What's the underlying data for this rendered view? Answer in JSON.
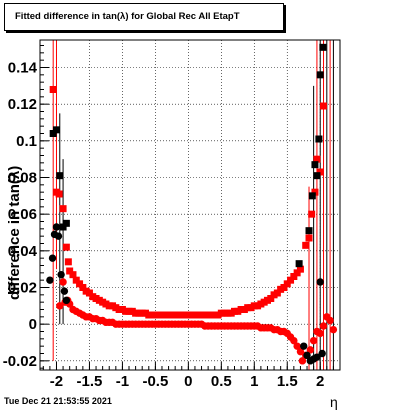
{
  "header": {
    "title": "Fitted difference in tan(λ) for Global Rec All EtapT"
  },
  "footer": {
    "timestamp": "Tue Dec 21 21:53:55 2021"
  },
  "chart_data": {
    "type": "scatter",
    "title": "Fitted difference in tan(λ) for Global Rec All EtapT",
    "xlabel": "η",
    "ylabel": "difference in tan(λ)",
    "xlim": [
      -2.25,
      2.3
    ],
    "ylim": [
      -0.025,
      0.155
    ],
    "xticks": [
      -2,
      -1.5,
      -1,
      -0.5,
      0,
      0.5,
      1,
      1.5,
      2
    ],
    "xtick_labels": [
      "-2",
      "-1.5",
      "-1",
      "-0.5",
      "0",
      "0.5",
      "1",
      "1.5",
      "2"
    ],
    "yticks": [
      -0.02,
      0,
      0.02,
      0.04,
      0.06,
      0.08,
      0.1,
      0.12,
      0.14
    ],
    "ytick_labels": [
      "-0.02",
      "0",
      "0.02",
      "0.04",
      "0.06",
      "0.08",
      "0.1",
      "0.12",
      "0.14"
    ],
    "grid": true,
    "colors": {
      "black": "#000000",
      "red": "#ff0000"
    },
    "series": [
      {
        "marker": "square",
        "color": "#000000",
        "points": [
          [
            -2.05,
            0.104
          ],
          [
            -2.0,
            0.106
          ],
          [
            -1.95,
            0.081
          ],
          [
            -1.9,
            0.053
          ],
          [
            -1.85,
            0.055
          ],
          [
            1.68,
            0.033
          ],
          [
            1.83,
            0.051
          ],
          [
            1.88,
            0.07
          ],
          [
            1.92,
            0.087
          ],
          [
            1.95,
            0.081
          ],
          [
            1.98,
            0.101
          ],
          [
            2.0,
            0.136
          ],
          [
            2.04,
            0.151
          ]
        ]
      },
      {
        "marker": "circle",
        "color": "#000000",
        "points": [
          [
            -2.1,
            0.024
          ],
          [
            -2.06,
            0.036
          ],
          [
            -2.03,
            0.049
          ],
          [
            -2.0,
            0.053
          ],
          [
            -1.97,
            0.048
          ],
          [
            -1.93,
            0.027
          ],
          [
            -1.88,
            0.018
          ],
          [
            -1.85,
            0.013
          ],
          [
            1.75,
            -0.012
          ],
          [
            1.8,
            -0.017
          ],
          [
            1.85,
            -0.02
          ],
          [
            1.9,
            -0.019
          ],
          [
            1.95,
            -0.018
          ],
          [
            2.0,
            0.023
          ],
          [
            2.03,
            -0.016
          ]
        ]
      },
      {
        "marker": "square",
        "color": "#ff0000",
        "points": [
          [
            -2.05,
            0.128
          ],
          [
            -2.0,
            0.072
          ],
          [
            -1.96,
            0.071
          ],
          [
            -1.9,
            0.063
          ],
          [
            -1.85,
            0.042
          ],
          [
            -1.82,
            0.034
          ],
          [
            -1.8,
            0.029
          ],
          [
            -1.75,
            0.027
          ],
          [
            -1.7,
            0.024
          ],
          [
            -1.65,
            0.022
          ],
          [
            -1.6,
            0.02
          ],
          [
            -1.55,
            0.018
          ],
          [
            -1.5,
            0.017
          ],
          [
            -1.45,
            0.015
          ],
          [
            -1.4,
            0.014
          ],
          [
            -1.35,
            0.013
          ],
          [
            -1.3,
            0.012
          ],
          [
            -1.25,
            0.011
          ],
          [
            -1.2,
            0.01
          ],
          [
            -1.15,
            0.01
          ],
          [
            -1.1,
            0.009
          ],
          [
            -1.05,
            0.008
          ],
          [
            -1.0,
            0.008
          ],
          [
            -0.95,
            0.007
          ],
          [
            -0.9,
            0.007
          ],
          [
            -0.85,
            0.007
          ],
          [
            -0.8,
            0.006
          ],
          [
            -0.75,
            0.006
          ],
          [
            -0.7,
            0.006
          ],
          [
            -0.65,
            0.006
          ],
          [
            -0.6,
            0.005
          ],
          [
            -0.55,
            0.005
          ],
          [
            -0.5,
            0.005
          ],
          [
            -0.45,
            0.005
          ],
          [
            -0.4,
            0.005
          ],
          [
            -0.35,
            0.005
          ],
          [
            -0.3,
            0.005
          ],
          [
            -0.25,
            0.005
          ],
          [
            -0.2,
            0.005
          ],
          [
            -0.15,
            0.005
          ],
          [
            -0.1,
            0.005
          ],
          [
            -0.05,
            0.005
          ],
          [
            0.0,
            0.005
          ],
          [
            0.05,
            0.005
          ],
          [
            0.1,
            0.005
          ],
          [
            0.15,
            0.005
          ],
          [
            0.2,
            0.005
          ],
          [
            0.25,
            0.005
          ],
          [
            0.3,
            0.005
          ],
          [
            0.35,
            0.005
          ],
          [
            0.4,
            0.005
          ],
          [
            0.45,
            0.005
          ],
          [
            0.5,
            0.006
          ],
          [
            0.55,
            0.006
          ],
          [
            0.6,
            0.006
          ],
          [
            0.65,
            0.006
          ],
          [
            0.7,
            0.007
          ],
          [
            0.75,
            0.007
          ],
          [
            0.8,
            0.008
          ],
          [
            0.85,
            0.008
          ],
          [
            0.9,
            0.009
          ],
          [
            0.95,
            0.009
          ],
          [
            1.0,
            0.01
          ],
          [
            1.05,
            0.01
          ],
          [
            1.1,
            0.011
          ],
          [
            1.15,
            0.012
          ],
          [
            1.2,
            0.013
          ],
          [
            1.25,
            0.014
          ],
          [
            1.3,
            0.016
          ],
          [
            1.35,
            0.017
          ],
          [
            1.4,
            0.019
          ],
          [
            1.45,
            0.02
          ],
          [
            1.5,
            0.022
          ],
          [
            1.55,
            0.024
          ],
          [
            1.6,
            0.026
          ],
          [
            1.65,
            0.028
          ],
          [
            1.7,
            0.03
          ],
          [
            1.78,
            0.043
          ],
          [
            1.83,
            0.047
          ],
          [
            1.87,
            0.06
          ],
          [
            1.92,
            0.072
          ],
          [
            1.95,
            0.09
          ],
          [
            2.0,
            0.083
          ],
          [
            2.05,
            0.119
          ]
        ]
      },
      {
        "marker": "circle",
        "color": "#ff0000",
        "points": [
          [
            -1.95,
            0.01
          ],
          [
            -1.9,
            0.023
          ],
          [
            -1.87,
            0.012
          ],
          [
            -1.83,
            0.013
          ],
          [
            -1.8,
            0.011
          ],
          [
            -1.75,
            0.008
          ],
          [
            -1.7,
            0.007
          ],
          [
            -1.65,
            0.006
          ],
          [
            -1.6,
            0.005
          ],
          [
            -1.55,
            0.004
          ],
          [
            -1.5,
            0.004
          ],
          [
            -1.45,
            0.003
          ],
          [
            -1.4,
            0.003
          ],
          [
            -1.35,
            0.002
          ],
          [
            -1.3,
            0.002
          ],
          [
            -1.25,
            0.001
          ],
          [
            -1.2,
            0.001
          ],
          [
            -1.15,
            0.001
          ],
          [
            -1.1,
            0.0
          ],
          [
            -1.05,
            0.0
          ],
          [
            -1.0,
            0.0
          ],
          [
            -0.95,
            0.0
          ],
          [
            -0.9,
            0.0
          ],
          [
            -0.85,
            0.0
          ],
          [
            -0.8,
            0.0
          ],
          [
            -0.75,
            0.0
          ],
          [
            -0.7,
            0.0
          ],
          [
            -0.65,
            0.0
          ],
          [
            -0.6,
            0.0
          ],
          [
            -0.55,
            0.0
          ],
          [
            -0.5,
            0.0
          ],
          [
            -0.45,
            0.0
          ],
          [
            -0.4,
            0.0
          ],
          [
            -0.35,
            0.0
          ],
          [
            -0.3,
            0.0
          ],
          [
            -0.25,
            0.0
          ],
          [
            -0.2,
            0.0
          ],
          [
            -0.15,
            0.0
          ],
          [
            -0.1,
            0.0
          ],
          [
            -0.05,
            0.0
          ],
          [
            0.0,
            0.0
          ],
          [
            0.05,
            0.0
          ],
          [
            0.1,
            0.0
          ],
          [
            0.15,
            0.0
          ],
          [
            0.2,
            0.0
          ],
          [
            0.25,
            -0.001
          ],
          [
            0.3,
            -0.001
          ],
          [
            0.35,
            -0.001
          ],
          [
            0.4,
            -0.001
          ],
          [
            0.45,
            -0.001
          ],
          [
            0.5,
            -0.001
          ],
          [
            0.55,
            -0.001
          ],
          [
            0.6,
            -0.001
          ],
          [
            0.65,
            -0.001
          ],
          [
            0.7,
            -0.001
          ],
          [
            0.75,
            -0.001
          ],
          [
            0.8,
            -0.001
          ],
          [
            0.85,
            -0.001
          ],
          [
            0.9,
            -0.001
          ],
          [
            0.95,
            -0.001
          ],
          [
            1.0,
            -0.001
          ],
          [
            1.05,
            -0.001
          ],
          [
            1.1,
            -0.002
          ],
          [
            1.15,
            -0.002
          ],
          [
            1.2,
            -0.002
          ],
          [
            1.25,
            -0.002
          ],
          [
            1.3,
            -0.003
          ],
          [
            1.35,
            -0.003
          ],
          [
            1.4,
            -0.004
          ],
          [
            1.45,
            -0.004
          ],
          [
            1.5,
            -0.005
          ],
          [
            1.55,
            -0.007
          ],
          [
            1.6,
            -0.009
          ],
          [
            1.65,
            -0.012
          ],
          [
            1.7,
            -0.015
          ],
          [
            1.73,
            -0.02
          ],
          [
            1.78,
            -0.017
          ],
          [
            1.85,
            -0.014
          ],
          [
            1.9,
            -0.009
          ],
          [
            1.95,
            -0.004
          ],
          [
            2.0,
            -0.005
          ],
          [
            2.05,
            -0.001
          ],
          [
            2.1,
            0.004
          ],
          [
            2.15,
            0.002
          ],
          [
            2.2,
            -0.003
          ]
        ]
      }
    ],
    "error_bars": [
      {
        "x": -2.05,
        "lo": -0.02,
        "hi": 0.155,
        "color": "#ff0000"
      },
      {
        "x": -2.0,
        "lo": 0.03,
        "hi": 0.155,
        "color": "#ff0000"
      },
      {
        "x": -1.95,
        "lo": 0.0,
        "hi": 0.115,
        "color": "#000000"
      },
      {
        "x": -1.9,
        "lo": 0.0,
        "hi": 0.09,
        "color": "#000000"
      },
      {
        "x": 1.83,
        "lo": -0.025,
        "hi": 0.075,
        "color": "#ff0000"
      },
      {
        "x": 1.9,
        "lo": -0.025,
        "hi": 0.13,
        "color": "#000000"
      },
      {
        "x": 1.95,
        "lo": -0.025,
        "hi": 0.155,
        "color": "#ff0000"
      },
      {
        "x": 2.0,
        "lo": -0.025,
        "hi": 0.155,
        "color": "#000000"
      },
      {
        "x": 2.05,
        "lo": -0.025,
        "hi": 0.155,
        "color": "#ff0000"
      },
      {
        "x": 2.1,
        "lo": -0.025,
        "hi": 0.155,
        "color": "#000000"
      },
      {
        "x": 2.15,
        "lo": -0.025,
        "hi": 0.155,
        "color": "#ff0000"
      },
      {
        "x": 2.2,
        "lo": -0.025,
        "hi": 0.155,
        "color": "#000000"
      }
    ]
  }
}
